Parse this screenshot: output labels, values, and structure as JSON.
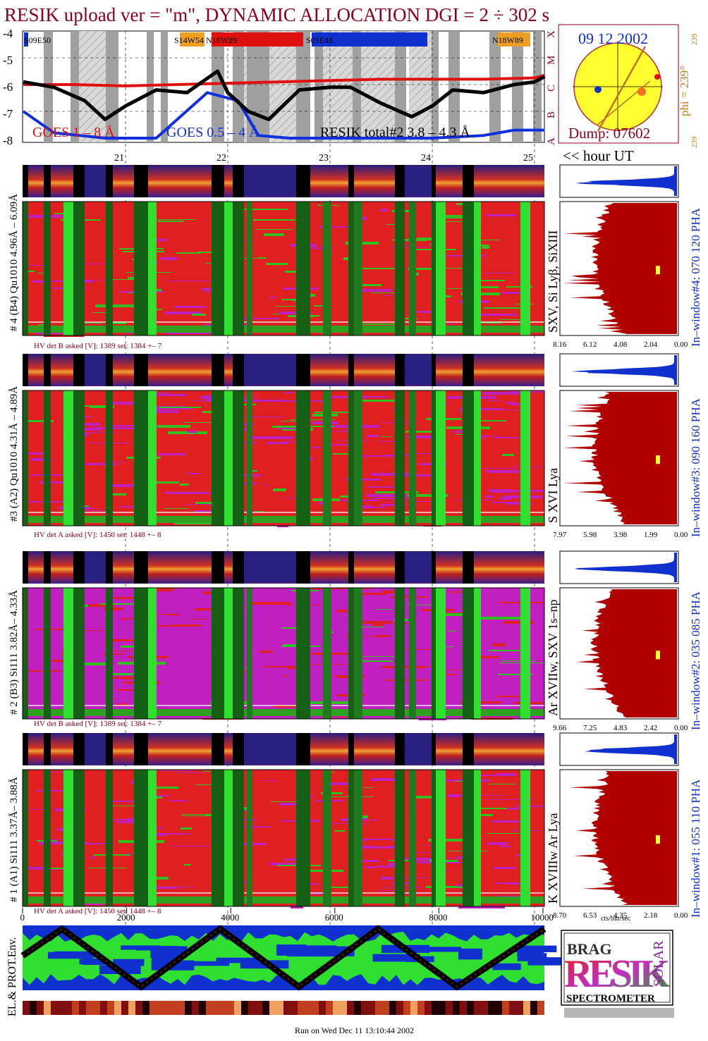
{
  "header": {
    "title": "RESIK upload ver = \"m\", DYNAMIC ALLOCATION  DGI =   2 ÷ 302 s",
    "footer": "Run on Wed Dec 11 13:10:44 2002"
  },
  "goes_panel": {
    "ylabels": [
      "-4",
      "-5",
      "-6",
      "-7",
      "-8"
    ],
    "right_letters": [
      "X",
      "M",
      "C",
      "B",
      "A"
    ],
    "legend": [
      {
        "text": "GOES 1 – 8 Å",
        "color": "#e01010"
      },
      {
        "text": "GOES 0.5 – 4 Å",
        "color": "#1030e0"
      },
      {
        "text": "RESIK total#2  3.8 – 4.3 Å",
        "color": "#000000"
      }
    ],
    "regions": [
      {
        "label": "S09E50",
        "color": "#1030d0"
      },
      {
        "label": "S14W54",
        "color": "#f0a020"
      },
      {
        "label": "N16W89",
        "color": "#e01010"
      },
      {
        "label": "S09E48",
        "color": "#1030d0"
      },
      {
        "label": "N18W89",
        "color": "#f0a020"
      }
    ],
    "hour_ticks": [
      "21",
      "22",
      "23",
      "24",
      "25"
    ],
    "hour_axis_label": "<< hour UT"
  },
  "sun_panel": {
    "date": "09 12 2002",
    "phi_label": "phi = 239°",
    "phi_small_top": "239",
    "phi_small_bottom": "239",
    "dump_label": "Dump: 07602"
  },
  "channels": [
    {
      "left_label": "# 4 (B4) Qu1010 4.96Å – 6.09Å",
      "line_label": "SXV, Si Lyβ, SiXIII",
      "right_label": "In–window#4:  070 120 PHA",
      "hv_label": "HV det B asked [V]:  1389 set:  1384  +–   7",
      "pha_ticks": [
        "8.16",
        "6.12",
        "4.08",
        "2.04",
        "0.00"
      ]
    },
    {
      "left_label": "#3 (A2) Qu1010  4.31Å – 4.89Å",
      "line_label": "S XVI Lya",
      "right_label": "In–window#3:  090 160 PHA",
      "hv_label": "HV det A asked [V]:  1450 set:  1448  +–   8",
      "pha_ticks": [
        "7.97",
        "5.98",
        "3.98",
        "1.99",
        "0.00"
      ]
    },
    {
      "left_label": "# 2 (B3) Si111  3.82Å– 4.33Å",
      "line_label": "Ar XVIIw,  SXV 1s–np",
      "right_label": "In–window#2:  035 085 PHA",
      "hv_label": "HV det B asked [V]:  1389 set:  1384  +–   7",
      "pha_ticks": [
        "9.66",
        "7.25",
        "4.83",
        "2.42",
        "0.00"
      ]
    },
    {
      "left_label": "# 1 (A1) Si111  3.37Å– 3.88Å",
      "line_label": "K XVIIIw  Ar Lya",
      "right_label": "In–window#1:  055 110 PHA",
      "hv_label": "HV det A asked [V]:  1450 set:  1448  +–   8",
      "pha_ticks": [
        "8.70",
        "6.53",
        "4.35",
        "2.18",
        "0.00"
      ]
    }
  ],
  "pha_xlabel": "cts/bin/sec",
  "bottom_axis_ticks": [
    "0",
    "2000",
    "4000",
    "6000",
    "8000",
    "10000"
  ],
  "env_panel": {
    "left_label": "EL.& PROT.Env."
  },
  "logo": {
    "top_small": "BRAG",
    "big": "RESIK",
    "side": "SOLAR",
    "bottom": "SPECTROMETER"
  },
  "chart_data": {
    "type": "line",
    "title": "RESIK upload ver = \"m\", DYNAMIC ALLOCATION  DGI =   2 ÷ 302 s",
    "xlabel": "hour UT",
    "ylabel": "",
    "x_ticks": [
      21,
      22,
      23,
      24,
      25
    ],
    "ylim": [
      -8,
      -4
    ],
    "series": [
      {
        "name": "GOES 1 – 8 Å",
        "color": "#e01010",
        "x": [
          20.0,
          20.5,
          21.0,
          21.5,
          22.0,
          22.5,
          23.0,
          23.5,
          24.0,
          24.5,
          25.0,
          25.1
        ],
        "y": [
          -6.0,
          -6.0,
          -6.05,
          -6.0,
          -5.95,
          -5.9,
          -5.85,
          -5.8,
          -5.8,
          -5.8,
          -5.75,
          -5.65
        ]
      },
      {
        "name": "GOES 0.5 – 4 Å",
        "color": "#1030e0",
        "x": [
          20.0,
          20.3,
          20.8,
          21.3,
          21.8,
          22.1,
          22.3,
          22.6,
          23.0,
          23.5,
          24.0,
          24.5,
          24.8,
          25.1
        ],
        "y": [
          -7.0,
          -7.8,
          -8.0,
          -8.0,
          -6.3,
          -6.6,
          -7.9,
          -8.0,
          -8.0,
          -8.0,
          -8.0,
          -7.9,
          -7.7,
          -7.7
        ]
      },
      {
        "name": "RESIK total#2  3.8 – 4.3 Å",
        "color": "#000000",
        "x": [
          20.0,
          20.3,
          20.6,
          20.8,
          21.0,
          21.3,
          21.6,
          21.9,
          22.0,
          22.2,
          22.4,
          22.7,
          23.0,
          23.2,
          23.5,
          23.8,
          24.0,
          24.2,
          24.5,
          24.8,
          25.0,
          25.1
        ],
        "y": [
          -5.9,
          -6.1,
          -6.6,
          -7.3,
          -6.8,
          -6.2,
          -6.3,
          -5.5,
          -6.3,
          -7.0,
          -7.3,
          -6.2,
          -6.1,
          -6.1,
          -6.7,
          -7.2,
          -6.8,
          -6.2,
          -6.3,
          -6.0,
          -5.9,
          -5.7
        ]
      }
    ]
  }
}
